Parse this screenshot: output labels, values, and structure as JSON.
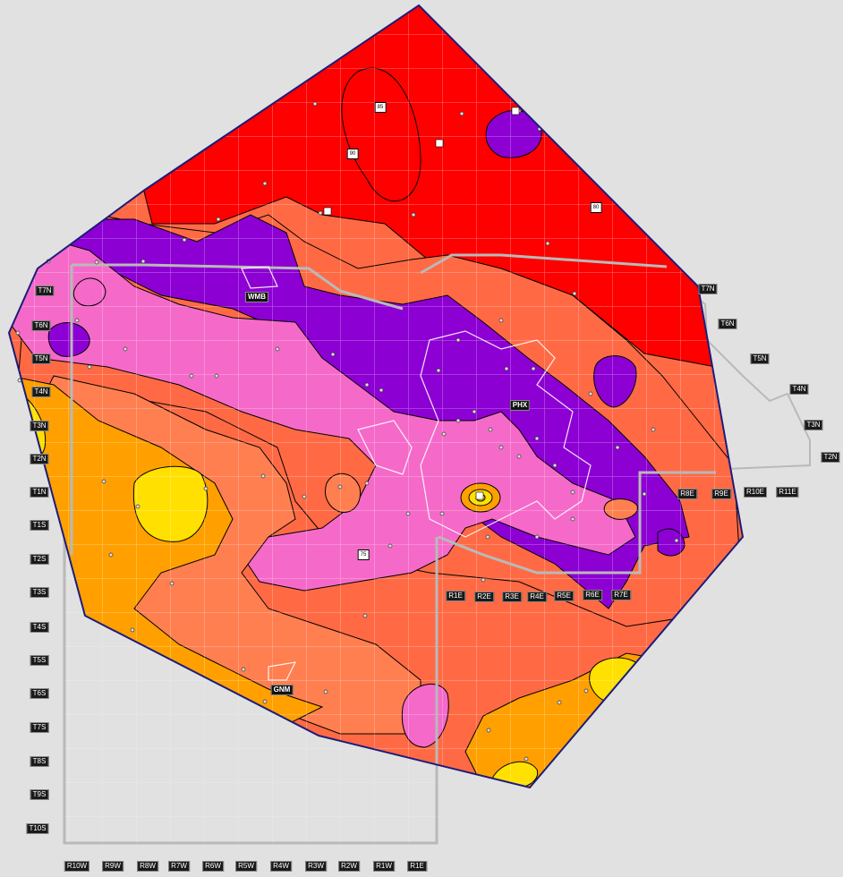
{
  "map": {
    "colors": {
      "background": "#e1e1e1",
      "boundary": "#1c1c7a",
      "grid": "#e8e8e8",
      "outline_gray": "#b9b9b9",
      "red": "#ff0000",
      "coral": "#ff6a45",
      "orange_light": "#ff7f50",
      "purple": "#8d00d4",
      "pink": "#f56ac9",
      "orange": "#ffa000",
      "yellow": "#ffe000"
    },
    "place_labels": [
      "WMB",
      "PHX",
      "GNM"
    ],
    "township_labels": {
      "left": [
        "T7N",
        "T6N",
        "T5N",
        "T4N",
        "T3N",
        "T2N",
        "T1N",
        "T1S",
        "T2S",
        "T3S",
        "T4S",
        "T5S",
        "T6S",
        "T7S",
        "T8S",
        "T9S",
        "T10S"
      ],
      "right": [
        "T7N",
        "T6N",
        "T5N",
        "T4N",
        "T3N",
        "T2N"
      ]
    },
    "range_labels": {
      "bottom": [
        "R10W",
        "R9W",
        "R8W",
        "R7W",
        "R6W",
        "R5W",
        "R4W",
        "R3W",
        "R2W",
        "R1W",
        "R1E"
      ],
      "middle": [
        "R1E",
        "R2E",
        "R3E",
        "R4E",
        "R5E",
        "R6E",
        "R7E"
      ],
      "right": [
        "R8E",
        "R9E",
        "R10E",
        "R11E"
      ]
    },
    "contour_values": [
      "85",
      "90",
      "80",
      "75"
    ]
  }
}
